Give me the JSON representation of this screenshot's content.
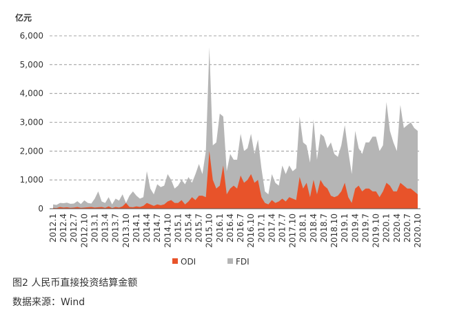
{
  "chart_data": {
    "type": "area",
    "ylabel": "亿元",
    "caption": "图2  人民币直接投资结算金额",
    "source": "数据来源：Wind",
    "categories": [
      "2012.1",
      null,
      null,
      "2012.4",
      null,
      null,
      "2012.7",
      null,
      null,
      "2012.10",
      null,
      null,
      "2013.1",
      null,
      null,
      "2013.4",
      null,
      null,
      "2013.7",
      null,
      null,
      "2013.10",
      null,
      null,
      "2014.1",
      null,
      null,
      "2014.4",
      null,
      null,
      "2014.7",
      null,
      null,
      "2014.10",
      null,
      null,
      "2015.1",
      null,
      null,
      "2015.4",
      null,
      null,
      "2015.7",
      null,
      null,
      "2015.10",
      null,
      null,
      "2016.1",
      null,
      null,
      "2016.4",
      null,
      null,
      "2016.7",
      null,
      null,
      "2016.10",
      null,
      null,
      "2017.1",
      null,
      null,
      "2017.4",
      null,
      null,
      "2017.7",
      null,
      null,
      "2017.10",
      null,
      null,
      "2018.1",
      null,
      null,
      "2018.4",
      null,
      null,
      "2018.7",
      null,
      null,
      "2018.10",
      null,
      null,
      "2019.1",
      null,
      null,
      "2019.4",
      null,
      null,
      "2019.7",
      null,
      null,
      "2019.10",
      null,
      null,
      "2020.1",
      null,
      null,
      "2020.4",
      null,
      null,
      "2020.7",
      null,
      null,
      "2020.10"
    ],
    "series": [
      {
        "name": "ODI",
        "color": "#e8532a",
        "values": [
          30,
          20,
          60,
          40,
          50,
          30,
          40,
          60,
          30,
          40,
          50,
          60,
          40,
          50,
          60,
          30,
          80,
          20,
          60,
          40,
          80,
          200,
          60,
          50,
          80,
          60,
          100,
          200,
          150,
          100,
          150,
          120,
          150,
          250,
          300,
          200,
          200,
          300,
          150,
          250,
          400,
          300,
          450,
          450,
          400,
          2000,
          1000,
          700,
          800,
          1500,
          500,
          700,
          800,
          700,
          1150,
          900,
          1000,
          1200,
          900,
          1000,
          400,
          200,
          150,
          300,
          200,
          250,
          350,
          250,
          400,
          350,
          300,
          1100,
          700,
          900,
          400,
          1000,
          500,
          1000,
          800,
          700,
          450,
          400,
          450,
          600,
          900,
          400,
          200,
          700,
          800,
          600,
          700,
          700,
          600,
          600,
          400,
          600,
          900,
          800,
          600,
          600,
          900,
          800,
          700,
          700,
          600,
          500
        ]
      },
      {
        "name": "FDI",
        "color": "#b5b5b5",
        "values": [
          150,
          130,
          200,
          190,
          210,
          170,
          180,
          260,
          160,
          290,
          200,
          180,
          350,
          600,
          250,
          200,
          400,
          150,
          350,
          280,
          500,
          200,
          450,
          600,
          450,
          350,
          400,
          1300,
          700,
          500,
          850,
          750,
          800,
          1200,
          1000,
          700,
          800,
          1000,
          850,
          1100,
          900,
          1200,
          1550,
          1200,
          2000,
          5600,
          2200,
          2300,
          3300,
          3200,
          1300,
          1900,
          1700,
          1700,
          2600,
          2000,
          2100,
          2600,
          1900,
          2400,
          1400,
          600,
          500,
          1200,
          900,
          800,
          1500,
          1200,
          1500,
          1300,
          1400,
          3200,
          2300,
          2200,
          1600,
          3100,
          1700,
          2600,
          2500,
          2100,
          2300,
          1900,
          1800,
          2200,
          2900,
          2000,
          1200,
          2700,
          2100,
          1900,
          2300,
          2300,
          2500,
          2500,
          2000,
          2200,
          3700,
          2700,
          2300,
          2000,
          3600,
          2800,
          2900,
          3000,
          2800,
          2700
        ]
      }
    ],
    "ylim": [
      0,
      6000
    ],
    "yticks": [
      0,
      {
        "value": 1000,
        "label": "1,000"
      },
      {
        "value": 2000,
        "label": "2,000"
      },
      {
        "value": 3000,
        "label": "3,000"
      },
      {
        "value": 4000,
        "label": "4,000"
      },
      {
        "value": 5000,
        "label": "5,000"
      },
      {
        "value": 6000,
        "label": "6,000"
      }
    ],
    "grid": true
  }
}
